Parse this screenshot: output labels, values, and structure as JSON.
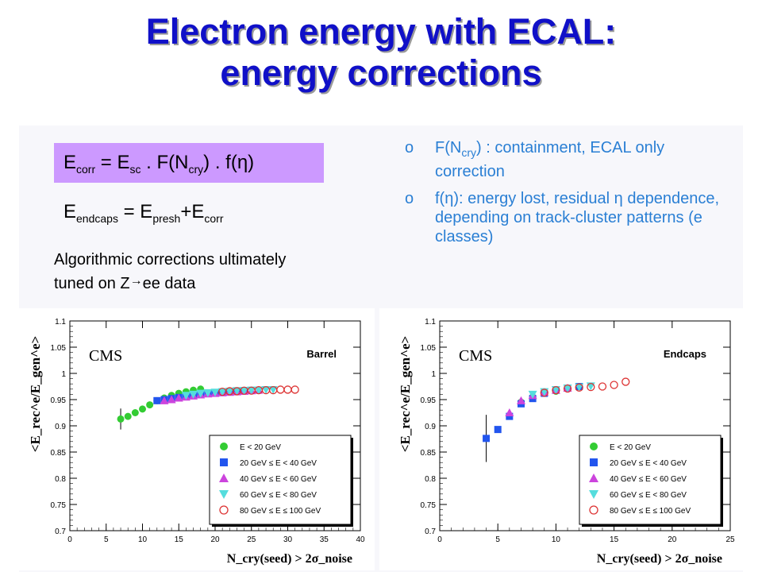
{
  "title": {
    "line1": "Electron energy with ECAL:",
    "line2": "energy corrections"
  },
  "formula1": {
    "e": "E",
    "sub_corr": "corr",
    "eq": " = E",
    "sub_sc": "sc",
    "dot1": " . F(N",
    "sub_cry": "cry",
    "tail": ") . f(η)"
  },
  "formula2": {
    "e": "E",
    "sub_endcaps": "endcaps",
    "eq": " = E",
    "sub_presh": "presh",
    "plus": "+E",
    "sub_corr": "corr"
  },
  "algorithm_text": {
    "line1": "Algorithmic corrections ultimately",
    "line2_a": "tuned on Z",
    "arrow": "→",
    "line2_b": "ee data"
  },
  "bullets": [
    {
      "marker": "o",
      "pre": "F(N",
      "sub": "cry",
      "post": ") : containment, ECAL only correction"
    },
    {
      "marker": "o",
      "pre": "f(η): energy lost, residual η dependence, depending on track-cluster patterns (e classes)",
      "sub": "",
      "post": ""
    }
  ],
  "colors": {
    "title": "#1010c8",
    "formula_box": "#cc99ff",
    "bullet_text": "#2a7fd4",
    "green": "#33cc33",
    "blue": "#2255ee",
    "magenta": "#cc44dd",
    "cyan": "#55dddd",
    "red_open": "#dd3333"
  },
  "chart_data": [
    {
      "type": "scatter",
      "id": "barrel",
      "title": "Barrel",
      "watermark": "CMS",
      "ylabel": "<E_rec^e/E_gen^e>",
      "xlabel": "N_cry(seed) > 2σ_noise",
      "xlim": [
        0,
        40
      ],
      "ylim": [
        0.7,
        1.1
      ],
      "xticks": [
        0,
        5,
        10,
        15,
        20,
        25,
        30,
        35,
        40
      ],
      "yticks": [
        0.7,
        0.75,
        0.8,
        0.85,
        0.9,
        0.95,
        1,
        1.05,
        1.1
      ],
      "legend_position": "bottom-right",
      "series": [
        {
          "name": "E < 20 GeV",
          "marker": "circle-filled",
          "color": "#33cc33",
          "x": [
            7,
            8,
            9,
            10,
            11,
            12,
            13,
            14,
            15,
            16,
            17,
            18
          ],
          "y": [
            0.913,
            0.918,
            0.925,
            0.932,
            0.94,
            0.948,
            0.953,
            0.958,
            0.962,
            0.965,
            0.968,
            0.97
          ],
          "err": [
            0.02,
            0,
            0,
            0,
            0,
            0,
            0,
            0,
            0,
            0,
            0,
            0
          ]
        },
        {
          "name": "20 GeV ≤ E < 40 GeV",
          "marker": "square-filled",
          "color": "#2255ee",
          "x": [
            12,
            13,
            14,
            15,
            16,
            17,
            18,
            19,
            20,
            21,
            22,
            23,
            24
          ],
          "y": [
            0.948,
            0.95,
            0.952,
            0.954,
            0.956,
            0.958,
            0.96,
            0.962,
            0.963,
            0.964,
            0.965,
            0.966,
            0.967
          ]
        },
        {
          "name": "40 GeV ≤ E < 60 GeV",
          "marker": "triangle-up-filled",
          "color": "#cc44dd",
          "x": [
            13,
            14,
            15,
            16,
            17,
            18,
            19,
            20,
            21,
            22,
            23,
            24,
            25,
            26
          ],
          "y": [
            0.948,
            0.95,
            0.953,
            0.955,
            0.957,
            0.959,
            0.961,
            0.962,
            0.963,
            0.964,
            0.965,
            0.966,
            0.967,
            0.968
          ]
        },
        {
          "name": "60 GeV ≤ E < 80 GeV",
          "marker": "triangle-down-filled",
          "color": "#55dddd",
          "x": [
            16,
            17,
            18,
            19,
            20,
            21,
            22,
            23,
            24,
            25,
            26,
            27,
            28
          ],
          "y": [
            0.958,
            0.96,
            0.962,
            0.963,
            0.964,
            0.965,
            0.966,
            0.967,
            0.967,
            0.968,
            0.968,
            0.969,
            0.969
          ]
        },
        {
          "name": "80 GeV ≤ E ≤ 100 GeV",
          "marker": "circle-open",
          "color": "#dd3333",
          "x": [
            21,
            22,
            23,
            24,
            25,
            26,
            27,
            28,
            29,
            30,
            31
          ],
          "y": [
            0.965,
            0.966,
            0.966,
            0.967,
            0.967,
            0.968,
            0.968,
            0.968,
            0.969,
            0.969,
            0.969
          ]
        }
      ]
    },
    {
      "type": "scatter",
      "id": "endcaps",
      "title": "Endcaps",
      "watermark": "CMS",
      "ylabel": "<E_rec^e/E_gen^e>",
      "xlabel": "N_cry(seed) > 2σ_noise",
      "xlim": [
        0,
        25
      ],
      "ylim": [
        0.7,
        1.1
      ],
      "xticks": [
        0,
        5,
        10,
        15,
        20,
        25
      ],
      "yticks": [
        0.7,
        0.75,
        0.8,
        0.85,
        0.9,
        0.95,
        1,
        1.05,
        1.1
      ],
      "legend_position": "bottom-right",
      "series": [
        {
          "name": "E < 20 GeV",
          "marker": "circle-filled",
          "color": "#33cc33",
          "x": [
            7,
            8,
            9,
            10
          ],
          "y": [
            0.945,
            0.955,
            0.962,
            0.966
          ]
        },
        {
          "name": "20 GeV ≤ E < 40 GeV",
          "marker": "square-filled",
          "color": "#2255ee",
          "x": [
            4,
            5,
            6,
            7,
            8,
            9,
            10,
            11,
            12
          ],
          "y": [
            0.876,
            0.893,
            0.918,
            0.942,
            0.952,
            0.962,
            0.968,
            0.972,
            0.975
          ],
          "err": [
            0.045,
            0,
            0,
            0,
            0,
            0,
            0,
            0,
            0
          ]
        },
        {
          "name": "40 GeV ≤ E < 60 GeV",
          "marker": "triangle-up-filled",
          "color": "#cc44dd",
          "x": [
            6,
            7,
            8,
            9,
            10,
            11
          ],
          "y": [
            0.925,
            0.948,
            0.958,
            0.964,
            0.968,
            0.972
          ]
        },
        {
          "name": "60 GeV ≤ E < 80 GeV",
          "marker": "triangle-down-filled",
          "color": "#55dddd",
          "x": [
            8,
            9,
            10,
            11,
            12,
            13
          ],
          "y": [
            0.96,
            0.965,
            0.969,
            0.972,
            0.974,
            0.976
          ]
        },
        {
          "name": "80 GeV ≤ E ≤ 100 GeV",
          "marker": "circle-open",
          "color": "#dd3333",
          "x": [
            9,
            10,
            11,
            12,
            13,
            14,
            15,
            16
          ],
          "y": [
            0.963,
            0.968,
            0.971,
            0.973,
            0.974,
            0.975,
            0.978,
            0.984
          ]
        }
      ]
    }
  ]
}
